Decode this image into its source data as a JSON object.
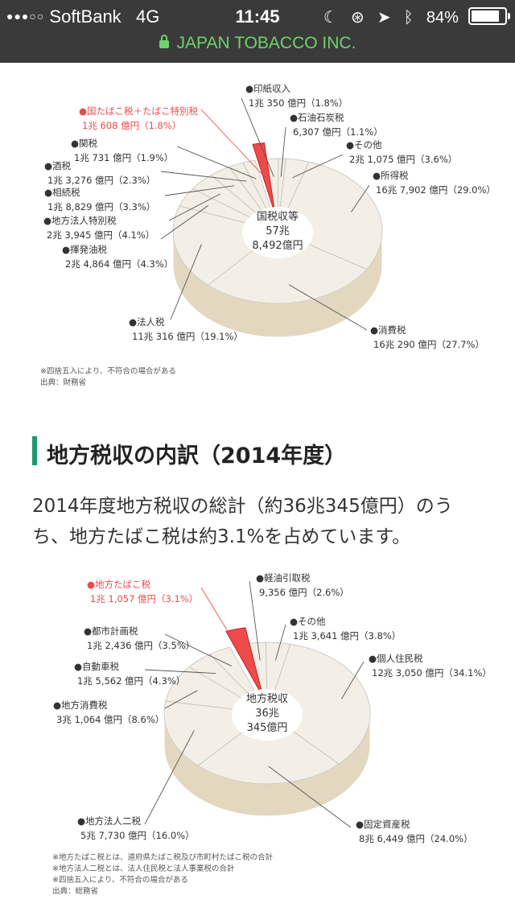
{
  "status_bar": {
    "signal": "●●●○○",
    "carrier": "SoftBank",
    "network": "4G",
    "time": "11:45",
    "battery": "84%",
    "battery_level": 0.84
  },
  "url_bar": {
    "site": "JAPAN TOBACCO INC."
  },
  "section": {
    "heading": "地方税収の内訳（2014年度）",
    "paragraph": "2014年度地方税収の総計（約36兆345億円）のうち、地方たばこ税は約3.1%を占めています。"
  },
  "chart_data": [
    {
      "type": "pie",
      "center_label": [
        "国税収等",
        "57兆",
        "8,492億円"
      ],
      "slices": [
        {
          "name": "●印紙収入",
          "amount": "1兆 350 億円（1.8%）",
          "pct": 1.8
        },
        {
          "name": "●石油石炭税",
          "amount": "6,307 億円（1.1%）",
          "pct": 1.1
        },
        {
          "name": "●その他",
          "amount": "2兆 1,075 億円（3.6%）",
          "pct": 3.6
        },
        {
          "name": "●所得税",
          "amount": "16兆 7,902 億円（29.0%）",
          "pct": 29.0
        },
        {
          "name": "●消費税",
          "amount": "16兆 290 億円（27.7%）",
          "pct": 27.7
        },
        {
          "name": "●法人税",
          "amount": "11兆 316 億円（19.1%）",
          "pct": 19.1
        },
        {
          "name": "●揮発油税",
          "amount": "2兆 4,864 億円（4.3%）",
          "pct": 4.3
        },
        {
          "name": "●地方法人特別税",
          "amount": "2兆 3,945 億円（4.1%）",
          "pct": 4.1
        },
        {
          "name": "●相続税",
          "amount": "1兆 8,829 億円（3.3%）",
          "pct": 3.3
        },
        {
          "name": "●酒税",
          "amount": "1兆 3,276 億円（2.3%）",
          "pct": 2.3
        },
        {
          "name": "●関税",
          "amount": "1兆 731 億円（1.9%）",
          "pct": 1.9
        },
        {
          "name": "●国たばこ税＋たばこ特別税",
          "amount": "1兆 608 億円（1.8%）",
          "pct": 1.8,
          "highlight": true
        }
      ],
      "notes": [
        "※四捨五入により、不符合の場合がある",
        "出典：財務省"
      ],
      "colors": {
        "slice": "#f3efe6",
        "side": "#e3d8bf",
        "highlight": "#ee4b4b",
        "line": "#555555"
      }
    },
    {
      "type": "pie",
      "center_label": [
        "地方税収",
        "36兆",
        "345億円"
      ],
      "slices": [
        {
          "name": "●軽油引取税",
          "amount": "9,356 億円（2.6%）",
          "pct": 2.6
        },
        {
          "name": "●その他",
          "amount": "1兆 3,641 億円（3.8%）",
          "pct": 3.8
        },
        {
          "name": "●個人住民税",
          "amount": "12兆 3,050 億円（34.1%）",
          "pct": 34.1
        },
        {
          "name": "●固定資産税",
          "amount": "8兆 6,449 億円（24.0%）",
          "pct": 24.0
        },
        {
          "name": "●地方法人二税",
          "amount": "5兆 7,730 億円（16.0%）",
          "pct": 16.0
        },
        {
          "name": "●地方消費税",
          "amount": "3兆 1,064 億円（8.6%）",
          "pct": 8.6
        },
        {
          "name": "●自動車税",
          "amount": "1兆 5,562 億円（4.3%）",
          "pct": 4.3
        },
        {
          "name": "●都市計画税",
          "amount": "1兆 2,436 億円（3.5%）",
          "pct": 3.5
        },
        {
          "name": "●地方たばこ税",
          "amount": "1兆 1,057 億円（3.1%）",
          "pct": 3.1,
          "highlight": true
        }
      ],
      "notes": [
        "※地方たばこ税とは、道府県たばこ税及び市町村たばこ税の合計",
        "※地方法人二税とは、法人住民税と法人事業税の合計",
        "※四捨五入により、不符合の場合がある",
        "出典：総務省"
      ],
      "colors": {
        "slice": "#f3efe6",
        "side": "#e3d8bf",
        "highlight": "#ee4b4b",
        "line": "#555555"
      }
    }
  ]
}
